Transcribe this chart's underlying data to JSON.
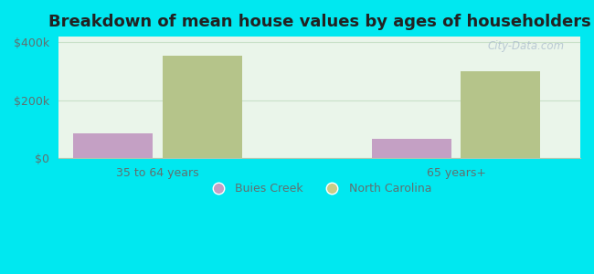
{
  "title": "Breakdown of mean house values by ages of householders",
  "categories": [
    "35 to 64 years",
    "65 years+"
  ],
  "series": {
    "Buies Creek": [
      85000,
      68000
    ],
    "North Carolina": [
      355000,
      300000
    ]
  },
  "bar_colors": {
    "Buies Creek": "#c4a0c4",
    "North Carolina": "#b5c48a"
  },
  "background_color": "#00e8f0",
  "plot_bg_gradient_start": "#d8f0d8",
  "plot_bg_gradient_end": "#f5faf5",
  "ylim": [
    0,
    420000
  ],
  "yticks": [
    0,
    200000,
    400000
  ],
  "ytick_labels": [
    "$0",
    "$200k",
    "$400k"
  ],
  "bar_width": 0.32,
  "title_fontsize": 13,
  "tick_label_color": "#607070",
  "watermark": "City-Data.com",
  "legend_dot_colors": {
    "Buies Creek": "#c4a0c4",
    "North Carolina": "#c8cc88"
  }
}
